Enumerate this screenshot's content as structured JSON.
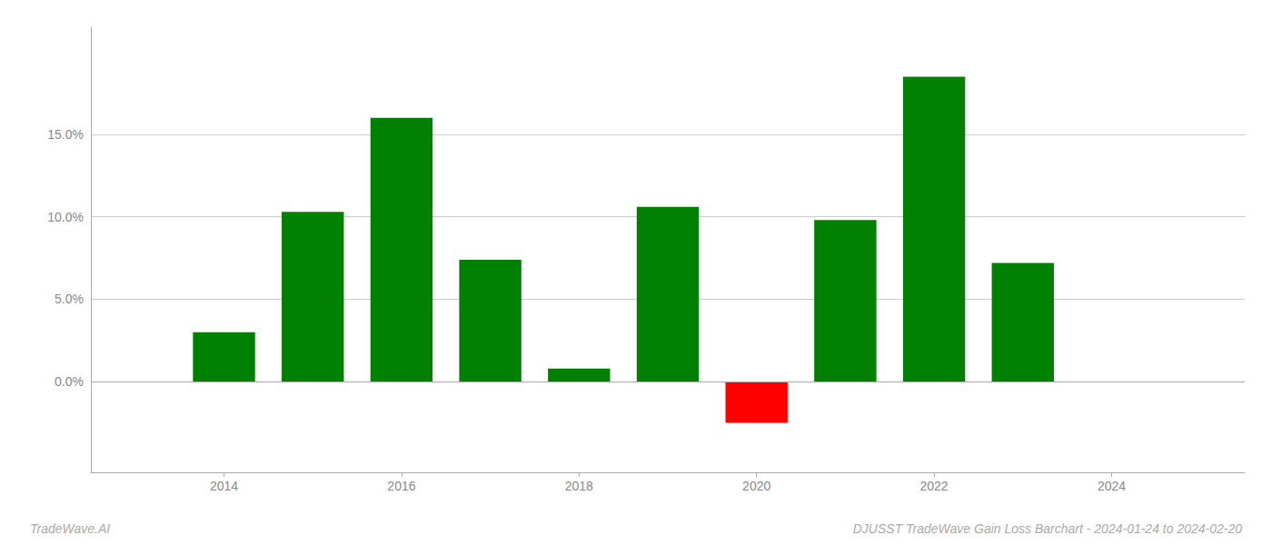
{
  "chart_data": {
    "type": "bar",
    "title": "DJUSST TradeWave Gain Loss Barchart - 2024-01-24 to 2024-02-20",
    "annotations": [
      "TradeWave.AI"
    ],
    "x": [
      2014,
      2015,
      2016,
      2017,
      2018,
      2019,
      2020,
      2021,
      2022,
      2023
    ],
    "values": [
      0.03,
      0.103,
      0.16,
      0.074,
      0.008,
      0.106,
      -0.025,
      0.098,
      0.185,
      0.072
    ],
    "colors": [
      "#008000",
      "#008000",
      "#008000",
      "#008000",
      "#008000",
      "#008000",
      "#ff0000",
      "#008000",
      "#008000",
      "#008000"
    ],
    "xlim": [
      2012.5,
      2025.5
    ],
    "xticks": [
      2014,
      2016,
      2018,
      2020,
      2022,
      2024
    ],
    "ylim": [
      -0.055,
      0.215
    ],
    "yticks": [
      {
        "value": 0.0,
        "label": "0.0%"
      },
      {
        "value": 0.05,
        "label": "5.0%"
      },
      {
        "value": 0.1,
        "label": "10.0%"
      },
      {
        "value": 0.15,
        "label": "15.0%"
      }
    ],
    "grid": true
  }
}
